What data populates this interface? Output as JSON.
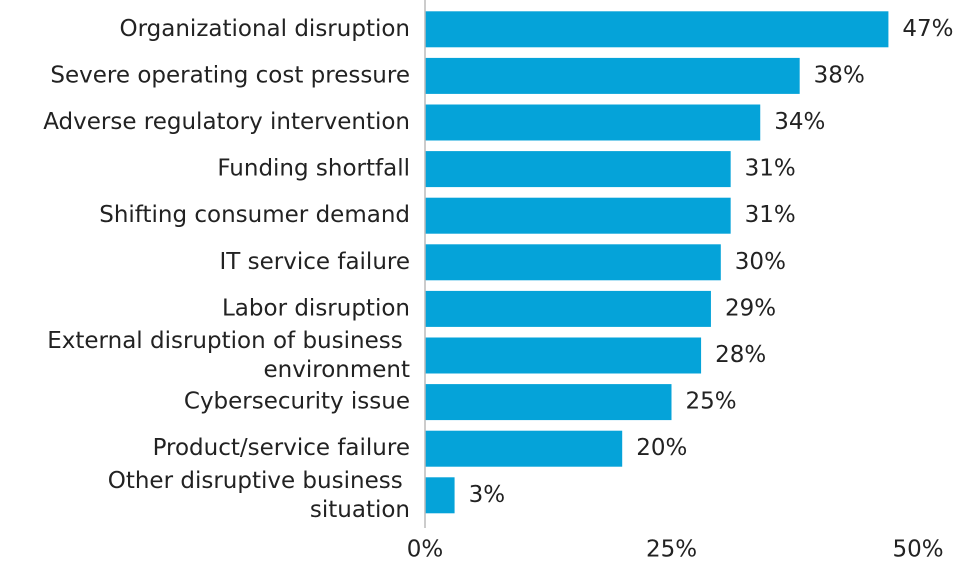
{
  "chart_data": {
    "type": "bar",
    "orientation": "horizontal",
    "categories": [
      "Organizational disruption",
      "Severe operating cost pressure",
      "Adverse regulatory intervention",
      "Funding shortfall",
      "Shifting consumer demand",
      "IT service failure",
      "Labor disruption",
      "External disruption of business environment",
      "Cybersecurity issue",
      "Product/service failure",
      "Other disruptive business situation"
    ],
    "values": [
      47,
      38,
      34,
      31,
      31,
      30,
      29,
      28,
      25,
      20,
      3
    ],
    "value_labels": [
      "47%",
      "38%",
      "34%",
      "31%",
      "31%",
      "30%",
      "29%",
      "28%",
      "25%",
      "20%",
      "3%"
    ],
    "color": "#05a3d9",
    "xlim": [
      0,
      50
    ],
    "xticks": [
      {
        "value": 0,
        "label": "0%"
      },
      {
        "value": 25,
        "label": "25%"
      },
      {
        "value": 50,
        "label": "50%"
      }
    ],
    "grid": false
  }
}
